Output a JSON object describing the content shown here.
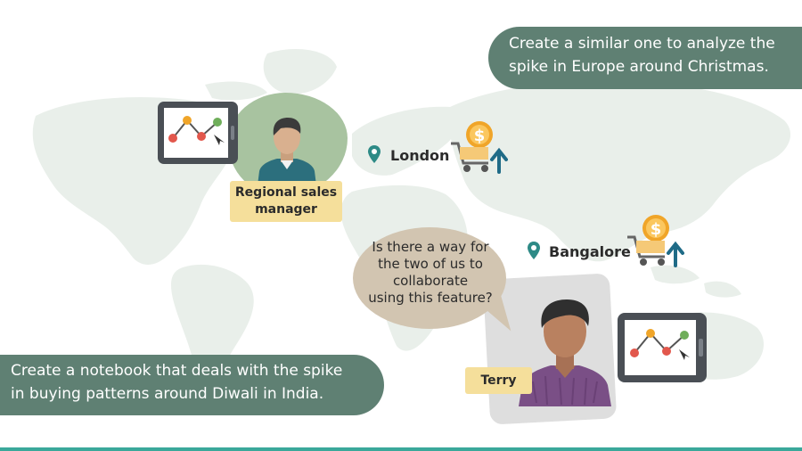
{
  "callouts": {
    "top_line1": "Create a similar one to analyze the",
    "top_line2": "spike in Europe around Christmas.",
    "bottom_line1": "Create a notebook that deals with the spike",
    "bottom_line2": "in buying patterns around Diwali in India."
  },
  "personas": {
    "manager_line1": "Regional sales",
    "manager_line2": "manager",
    "terry": "Terry"
  },
  "speech": {
    "line1": "Is there a way for",
    "line2": "the two of us to",
    "line3": "collaborate",
    "line4": "using this feature?"
  },
  "cities": {
    "london": "London",
    "bangalore": "Bangalore"
  },
  "icons": [
    "map-pin-icon",
    "shopping-cart-icon",
    "dollar-coin-icon",
    "up-arrow-icon",
    "tablet-chart-icon",
    "person-avatar-icon"
  ],
  "colors": {
    "callout_bg": "#5f8073",
    "label_bg": "#f5df9b",
    "bubble_bg": "#d2c5b1",
    "map": "#e9efea",
    "coin": "#f0a529",
    "arrow": "#1f6b87"
  }
}
